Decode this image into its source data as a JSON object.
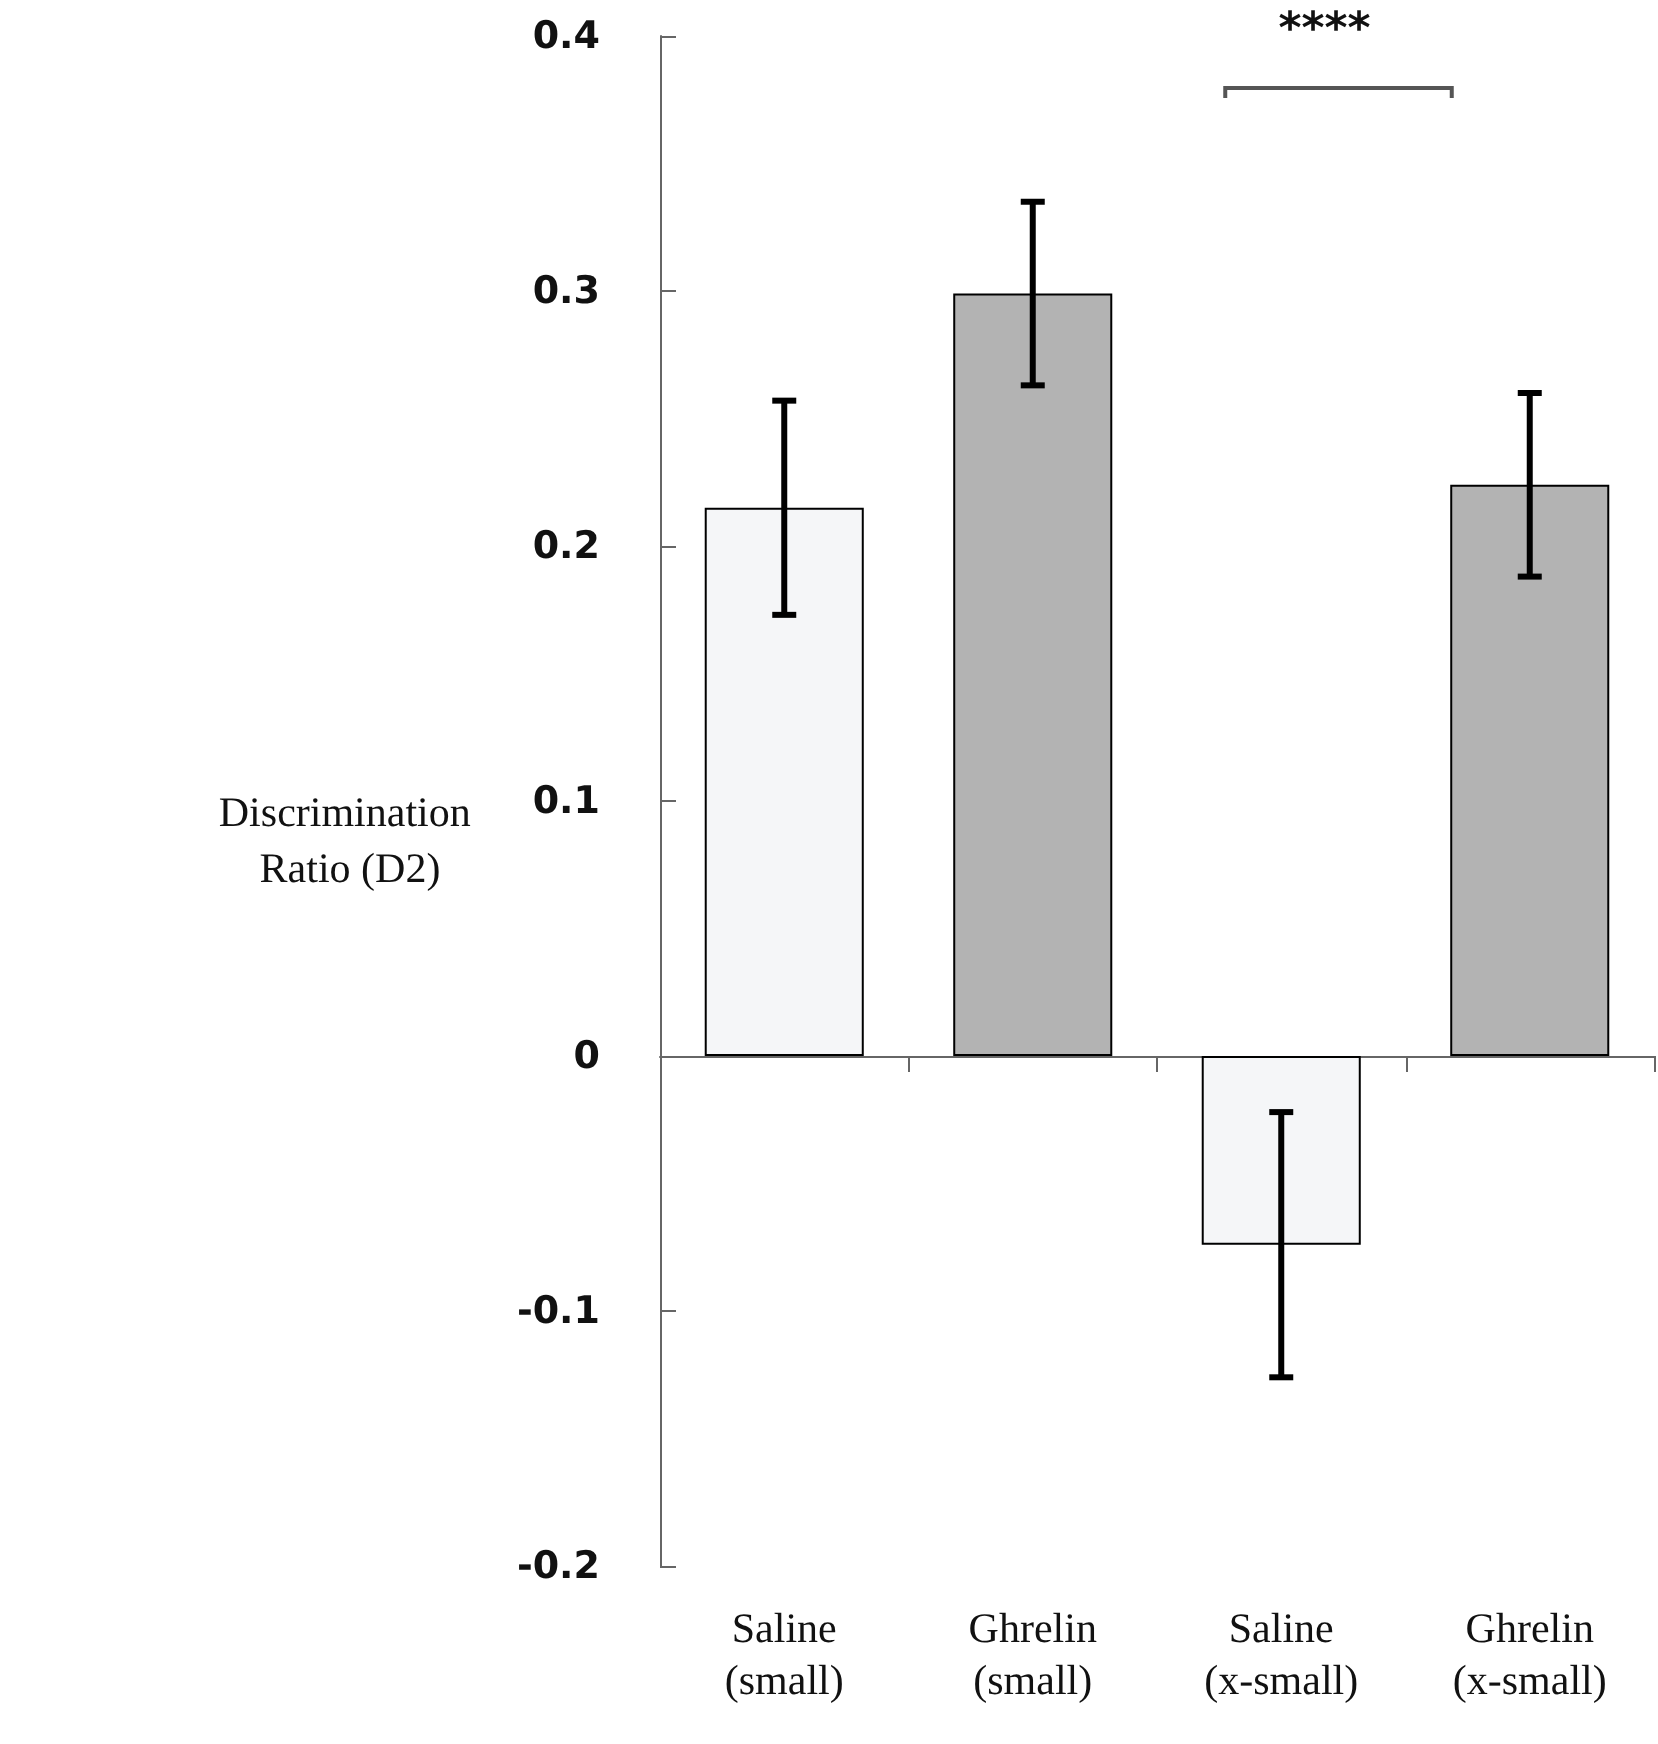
{
  "chart_data": {
    "type": "bar",
    "ylabel": "Discrimination Ratio (D2)",
    "categories": [
      "Saline\n(small)",
      "Ghrelin\n(small)",
      "Saline\n(x-small)",
      "Ghrelin\n(x-small)"
    ],
    "values": [
      0.215,
      0.299,
      -0.074,
      0.224
    ],
    "errors": [
      0.042,
      0.036,
      0.052,
      0.036
    ],
    "colors": [
      "#f5f6f8",
      "#b3b3b3",
      "#f5f6f8",
      "#b3b3b3"
    ],
    "ylim": [
      -0.2,
      0.4
    ],
    "yticks": [
      -0.2,
      -0.1,
      0,
      0.1,
      0.2,
      0.3,
      0.4
    ],
    "annotations": [
      "****"
    ]
  }
}
